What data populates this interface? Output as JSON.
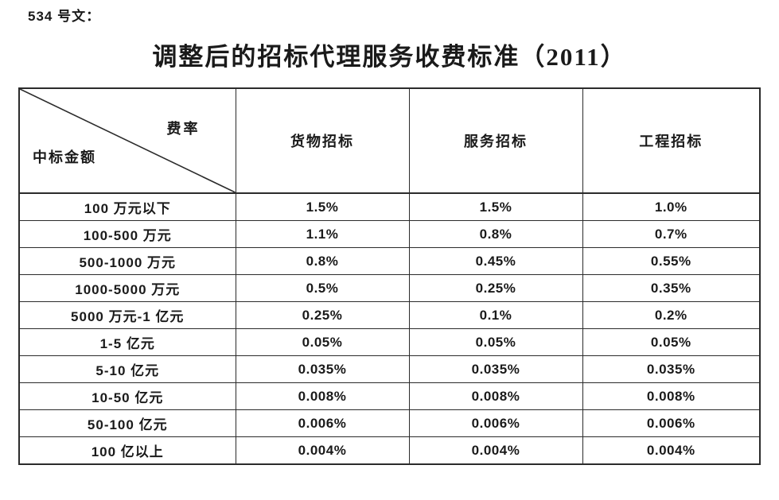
{
  "doc": {
    "ref_label": "534 号文：",
    "title": "调整后的招标代理服务收费标准（2011）"
  },
  "table": {
    "corner": {
      "top_right": "费率",
      "bottom_left": "中标金额"
    },
    "columns": [
      "货物招标",
      "服务招标",
      "工程招标"
    ],
    "rows": [
      {
        "label": "100 万元以下",
        "values": [
          "1.5%",
          "1.5%",
          "1.0%"
        ]
      },
      {
        "label": "100-500 万元",
        "values": [
          "1.1%",
          "0.8%",
          "0.7%"
        ]
      },
      {
        "label": "500-1000 万元",
        "values": [
          "0.8%",
          "0.45%",
          "0.55%"
        ]
      },
      {
        "label": "1000-5000 万元",
        "values": [
          "0.5%",
          "0.25%",
          "0.35%"
        ]
      },
      {
        "label": "5000 万元-1 亿元",
        "values": [
          "0.25%",
          "0.1%",
          "0.2%"
        ]
      },
      {
        "label": "1-5 亿元",
        "values": [
          "0.05%",
          "0.05%",
          "0.05%"
        ]
      },
      {
        "label": "5-10 亿元",
        "values": [
          "0.035%",
          "0.035%",
          "0.035%"
        ]
      },
      {
        "label": "10-50 亿元",
        "values": [
          "0.008%",
          "0.008%",
          "0.008%"
        ]
      },
      {
        "label": "50-100 亿元",
        "values": [
          "0.006%",
          "0.006%",
          "0.006%"
        ]
      },
      {
        "label": "100 亿以上",
        "values": [
          "0.004%",
          "0.004%",
          "0.004%"
        ]
      }
    ],
    "colors": {
      "border": "#2b2b2b",
      "text": "#1a1a1a",
      "background": "#ffffff"
    }
  }
}
